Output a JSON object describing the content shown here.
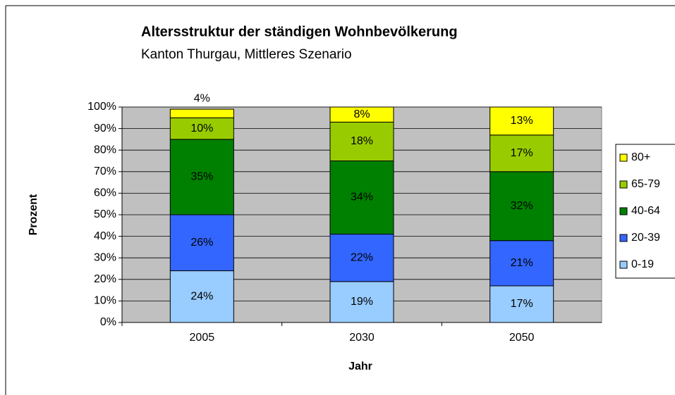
{
  "chart_data": {
    "type": "stacked_bar",
    "title": "Altersstruktur der ständigen Wohnbevölkerung",
    "subtitle": "Kanton Thurgau, Mittleres Szenario",
    "x_label": "Jahr",
    "y_label": "Prozent",
    "categories": [
      "2005",
      "2030",
      "2050"
    ],
    "series": [
      {
        "name": "0-19",
        "color": "#99ccff",
        "values": [
          24,
          19,
          17
        ],
        "value_labels": [
          "24%",
          "19%",
          "17%"
        ]
      },
      {
        "name": "20-39",
        "color": "#3366ff",
        "values": [
          26,
          22,
          21
        ],
        "value_labels": [
          "26%",
          "22%",
          "21%"
        ]
      },
      {
        "name": "40-64",
        "color": "#008000",
        "values": [
          35,
          34,
          32
        ],
        "value_labels": [
          "35%",
          "34%",
          "32%"
        ]
      },
      {
        "name": "65-79",
        "color": "#99cc00",
        "values": [
          10,
          18,
          17
        ],
        "value_labels": [
          "10%",
          "18%",
          "17%"
        ]
      },
      {
        "name": "80+",
        "color": "#ffff00",
        "values": [
          4,
          8,
          13
        ],
        "value_labels": [
          "4%",
          "8%",
          "13%"
        ]
      }
    ],
    "ylim": [
      0,
      100
    ],
    "yticks": [
      {
        "value": 0,
        "label": "0%"
      },
      {
        "value": 10,
        "label": "10%"
      },
      {
        "value": 20,
        "label": "20%"
      },
      {
        "value": 30,
        "label": "30%"
      },
      {
        "value": 40,
        "label": "40%"
      },
      {
        "value": 50,
        "label": "50%"
      },
      {
        "value": 60,
        "label": "60%"
      },
      {
        "value": 70,
        "label": "70%"
      },
      {
        "value": 80,
        "label": "80%"
      },
      {
        "value": 90,
        "label": "90%"
      },
      {
        "value": 100,
        "label": "100%"
      }
    ],
    "grid": true,
    "legend": "right",
    "plot_background": "#c0c0c0"
  }
}
